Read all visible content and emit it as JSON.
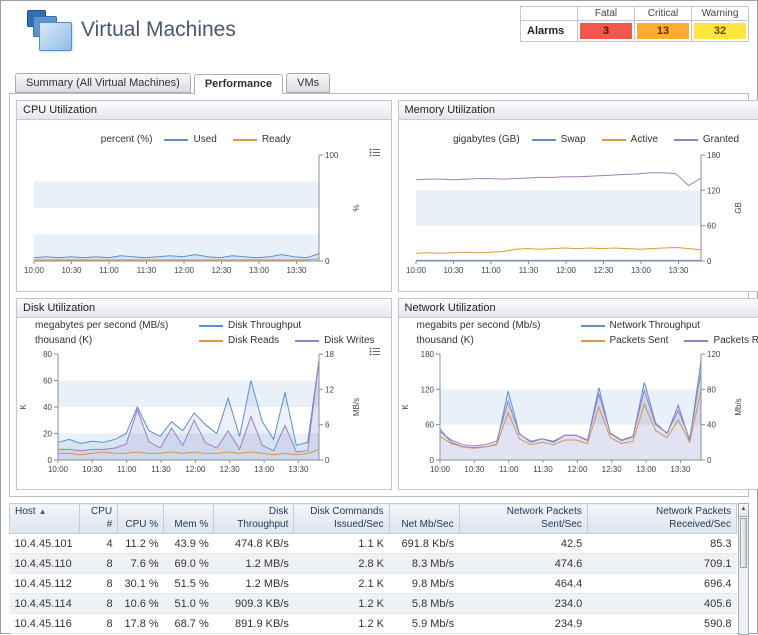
{
  "page": {
    "title": "Virtual Machines"
  },
  "alarms": {
    "label": "Alarms",
    "columns": [
      "Fatal",
      "Critical",
      "Warning"
    ],
    "counts": [
      "3",
      "13",
      "32"
    ],
    "colors": [
      "#f2564d",
      "#ffab2e",
      "#ffe53d"
    ],
    "text_colors": [
      "#55120e",
      "#553300",
      "#555000"
    ]
  },
  "tabs": [
    {
      "label": "Summary (All Virtual Machines)",
      "active": false
    },
    {
      "label": "Performance",
      "active": true
    },
    {
      "label": "VMs",
      "active": false
    }
  ],
  "charts": [
    {
      "id": "cpu",
      "title": "CPU Utilization",
      "type": "line",
      "legend_center": true,
      "bands": 4,
      "legend": [
        {
          "unit": "percent (%)",
          "items": [
            {
              "label": "Used",
              "color": "#5d8fd1"
            },
            {
              "label": "Ready",
              "color": "#dd9a3a"
            }
          ]
        }
      ],
      "right_axis": {
        "label": "%",
        "ticks": [
          0,
          100
        ]
      },
      "x_labels": [
        "10:00",
        "10:30",
        "11:00",
        "11:30",
        "12:00",
        "12:30",
        "13:00",
        "13:30"
      ],
      "series": [
        {
          "name": "Used",
          "color": "#5d8fd1",
          "axis": "right",
          "fill": true,
          "values": [
            3,
            4,
            3,
            4,
            3,
            4,
            3,
            5,
            4,
            3,
            4,
            5,
            4,
            6,
            4,
            3,
            5,
            4,
            3,
            4,
            6,
            4,
            3,
            7
          ]
        },
        {
          "name": "Ready",
          "color": "#dd9a3a",
          "axis": "right",
          "fill": false,
          "values": [
            1,
            1,
            1,
            1,
            1,
            1,
            1,
            1,
            1,
            1,
            1,
            1,
            1,
            1,
            1,
            1,
            1,
            1,
            1,
            1,
            1,
            1,
            1,
            2
          ]
        }
      ]
    },
    {
      "id": "memory",
      "title": "Memory Utilization",
      "type": "line",
      "legend_center": true,
      "bands": 3,
      "legend": [
        {
          "unit": "gigabytes (GB)",
          "items": [
            {
              "label": "Swap",
              "color": "#5d8fd1"
            },
            {
              "label": "Active",
              "color": "#dd9a3a"
            },
            {
              "label": "Granted",
              "color": "#9a7fc4"
            }
          ]
        }
      ],
      "right_axis": {
        "label": "GB",
        "ticks": [
          0,
          60,
          120,
          180
        ]
      },
      "x_labels": [
        "10:00",
        "10:30",
        "11:00",
        "11:30",
        "12:00",
        "12:30",
        "13:00",
        "13:30"
      ],
      "series": [
        {
          "name": "Swap",
          "color": "#5d8fd1",
          "axis": "right",
          "fill": false,
          "values": [
            1,
            1,
            1,
            1,
            1,
            1,
            1,
            1,
            1,
            1,
            1,
            1,
            1,
            1,
            1,
            1,
            1,
            1,
            1,
            1,
            1,
            1,
            1,
            1
          ]
        },
        {
          "name": "Active",
          "color": "#dd9a3a",
          "axis": "right",
          "fill": false,
          "values": [
            13,
            14,
            13,
            14,
            15,
            14,
            15,
            16,
            20,
            21,
            20,
            21,
            22,
            21,
            22,
            21,
            22,
            21,
            20,
            21,
            22,
            23,
            21,
            19
          ]
        },
        {
          "name": "Granted",
          "color": "#9a7fc4",
          "axis": "right",
          "fill": false,
          "values": [
            138,
            139,
            139,
            138,
            139,
            140,
            140,
            139,
            140,
            141,
            142,
            142,
            143,
            143,
            144,
            145,
            146,
            147,
            148,
            150,
            150,
            148,
            128,
            141
          ]
        }
      ]
    },
    {
      "id": "disk",
      "title": "Disk Utilization",
      "type": "line",
      "legend_center": false,
      "bands": 4,
      "legend": [
        {
          "unit": "megabytes per second (MB/s)",
          "items": [
            {
              "label": "Disk Throughput",
              "color": "#5d8fd1"
            }
          ]
        },
        {
          "unit": "thousand (K)",
          "items": [
            {
              "label": "Disk Reads",
              "color": "#dd9a3a"
            },
            {
              "label": "Disk Writes",
              "color": "#9a7fc4"
            }
          ]
        }
      ],
      "left_axis": {
        "label": "K",
        "ticks": [
          0,
          20,
          40,
          60,
          80
        ]
      },
      "right_axis": {
        "label": "MB/s",
        "ticks": [
          0,
          6,
          12,
          18
        ]
      },
      "x_labels": [
        "10:00",
        "10:30",
        "11:00",
        "11:30",
        "12:00",
        "12:30",
        "13:00",
        "13:30"
      ],
      "series": [
        {
          "name": "Disk Throughput",
          "color": "#5d8fd1",
          "axis": "right",
          "fill": true,
          "values": [
            3,
            3.5,
            2.8,
            3.2,
            3,
            3.5,
            4.5,
            9,
            5,
            4,
            6.5,
            5,
            8,
            6,
            4.5,
            10.5,
            4,
            13.5,
            6.5,
            3.5,
            11.5,
            2.5,
            3,
            17
          ]
        },
        {
          "name": "Disk Reads",
          "color": "#dd9a3a",
          "axis": "left",
          "fill": false,
          "values": [
            5,
            5,
            4,
            5,
            6,
            5,
            5,
            6,
            5,
            5,
            6,
            5,
            6,
            5,
            5,
            6,
            5,
            6,
            5,
            4,
            5,
            4,
            5,
            8
          ]
        },
        {
          "name": "Disk Writes",
          "color": "#9a7fc4",
          "axis": "left",
          "fill": true,
          "values": [
            8,
            8,
            7,
            8,
            8,
            9,
            12,
            38,
            14,
            9,
            24,
            11,
            30,
            13,
            9,
            22,
            8,
            33,
            11,
            7,
            26,
            6,
            7,
            75
          ]
        }
      ]
    },
    {
      "id": "network",
      "title": "Network Utilization",
      "type": "line",
      "legend_center": false,
      "bands": 3,
      "legend": [
        {
          "unit": "megabits per second (Mb/s)",
          "items": [
            {
              "label": "Network Throughput",
              "color": "#5d8fd1"
            }
          ]
        },
        {
          "unit": "thousand (K)",
          "items": [
            {
              "label": "Packets Sent",
              "color": "#dd9a3a"
            },
            {
              "label": "Packets Received",
              "color": "#9a7fc4"
            }
          ]
        }
      ],
      "left_axis": {
        "label": "K",
        "ticks": [
          0,
          60,
          120,
          180
        ]
      },
      "right_axis": {
        "label": "Mb/s",
        "ticks": [
          0,
          40,
          80,
          120
        ]
      },
      "x_labels": [
        "10:00",
        "10:30",
        "11:00",
        "11:30",
        "12:00",
        "12:30",
        "13:00",
        "13:30"
      ],
      "series": [
        {
          "name": "Network Throughput",
          "color": "#5d8fd1",
          "axis": "right",
          "fill": true,
          "values": [
            35,
            20,
            15,
            14,
            15,
            18,
            78,
            30,
            20,
            24,
            20,
            28,
            28,
            22,
            82,
            30,
            22,
            26,
            88,
            42,
            30,
            62,
            22,
            112
          ]
        },
        {
          "name": "Packets Sent",
          "color": "#dd9a3a",
          "axis": "left",
          "fill": false,
          "values": [
            40,
            28,
            22,
            20,
            22,
            26,
            80,
            36,
            26,
            30,
            26,
            34,
            34,
            28,
            90,
            38,
            28,
            32,
            95,
            50,
            38,
            68,
            30,
            118
          ]
        },
        {
          "name": "Packets Received",
          "color": "#9a7fc4",
          "axis": "left",
          "fill": true,
          "values": [
            48,
            34,
            26,
            24,
            26,
            32,
            100,
            44,
            32,
            36,
            32,
            42,
            42,
            34,
            112,
            46,
            34,
            40,
            118,
            60,
            46,
            84,
            36,
            150
          ]
        }
      ]
    }
  ],
  "table": {
    "columns": [
      {
        "label": "Host",
        "sorted": "asc",
        "align": "left",
        "width": 70
      },
      {
        "label": "CPU #",
        "align": "right",
        "width": 38
      },
      {
        "label": "CPU %",
        "align": "right",
        "width": 46
      },
      {
        "label": "Mem %",
        "align": "right",
        "width": 50
      },
      {
        "label": "Disk Throughput",
        "align": "right",
        "width": 80
      },
      {
        "label": "Disk Commands Issued/Sec",
        "align": "right",
        "width": 95
      },
      {
        "label": "Net Mb/Sec",
        "align": "right",
        "width": 70
      },
      {
        "label": "Network Packets Sent/Sec",
        "align": "right",
        "width": 128
      },
      {
        "label": "Network Packets Received/Sec",
        "align": "right",
        "width": 149
      }
    ],
    "rows": [
      [
        "10.4.45.101",
        "4",
        "11.2 %",
        "43.9 %",
        "474.8 KB/s",
        "1.1 K",
        "691.8 Kb/s",
        "42.5",
        "85.3"
      ],
      [
        "10.4.45.110",
        "8",
        "7.6 %",
        "69.0 %",
        "1.2 MB/s",
        "2.8 K",
        "8.3 Mb/s",
        "474.6",
        "709.1"
      ],
      [
        "10.4.45.112",
        "8",
        "30.1 %",
        "51.5 %",
        "1.2 MB/s",
        "2.1 K",
        "9.8 Mb/s",
        "464.4",
        "696.4"
      ],
      [
        "10.4.45.114",
        "8",
        "10.6 %",
        "51.0 %",
        "909.3 KB/s",
        "1.2 K",
        "5.8 Mb/s",
        "234.0",
        "405.6"
      ],
      [
        "10.4.45.116",
        "8",
        "17.8 %",
        "68.7 %",
        "891.9 KB/s",
        "1.2 K",
        "5.9 Mb/s",
        "234.9",
        "590.8"
      ]
    ]
  }
}
